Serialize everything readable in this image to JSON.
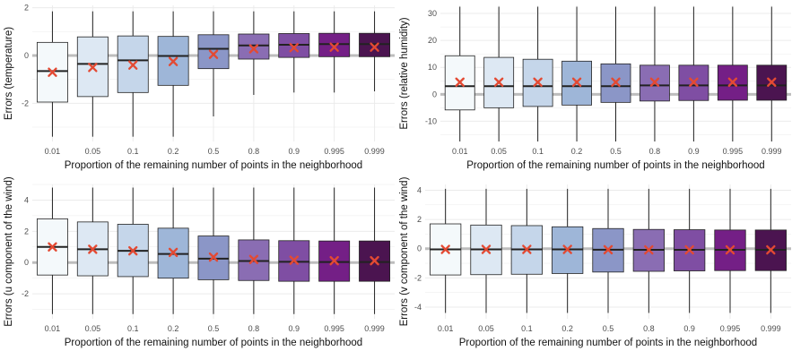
{
  "colors": {
    "boxes": [
      "#f4f9fb",
      "#dde8f3",
      "#c5d6ea",
      "#9eb6d8",
      "#8b96c7",
      "#8a6db3",
      "#7f4ea3",
      "#741f86",
      "#4b1450"
    ],
    "mean_marker": "#e34a33",
    "zero_line": "#bdbdbd",
    "grid": "#ebebeb",
    "text": "#4d4d4d"
  },
  "chart_data": [
    {
      "type": "box",
      "xlabel": "Proportion of the remaining number of points in the neighborhood",
      "ylabel": "Errors (temperature)",
      "categories": [
        "0.01",
        "0.05",
        "0.1",
        "0.2",
        "0.5",
        "0.8",
        "0.9",
        "0.995",
        "0.999"
      ],
      "ylim": [
        -3.6,
        2.1
      ],
      "yticks": [
        -2,
        0,
        2
      ],
      "zero_line": 0,
      "boxes": [
        {
          "whisker_low": -3.4,
          "q1": -1.95,
          "median": -0.65,
          "q3": 0.55,
          "whisker_high": 1.85,
          "mean": -0.7
        },
        {
          "whisker_low": -3.4,
          "q1": -1.72,
          "median": -0.35,
          "q3": 0.78,
          "whisker_high": 1.85,
          "mean": -0.5
        },
        {
          "whisker_low": -3.4,
          "q1": -1.55,
          "median": -0.2,
          "q3": 0.82,
          "whisker_high": 1.85,
          "mean": -0.4
        },
        {
          "whisker_low": -3.4,
          "q1": -1.25,
          "median": -0.02,
          "q3": 0.8,
          "whisker_high": 1.85,
          "mean": -0.25
        },
        {
          "whisker_low": -2.55,
          "q1": -0.55,
          "median": 0.28,
          "q3": 0.87,
          "whisker_high": 1.85,
          "mean": 0.05
        },
        {
          "whisker_low": -1.65,
          "q1": -0.15,
          "median": 0.42,
          "q3": 0.9,
          "whisker_high": 1.85,
          "mean": 0.28
        },
        {
          "whisker_low": -1.55,
          "q1": -0.08,
          "median": 0.45,
          "q3": 0.92,
          "whisker_high": 1.85,
          "mean": 0.33
        },
        {
          "whisker_low": -1.55,
          "q1": -0.05,
          "median": 0.48,
          "q3": 0.93,
          "whisker_high": 1.85,
          "mean": 0.35
        },
        {
          "whisker_low": -1.5,
          "q1": -0.05,
          "median": 0.48,
          "q3": 0.93,
          "whisker_high": 1.85,
          "mean": 0.35
        }
      ]
    },
    {
      "type": "box",
      "xlabel": "Proportion of the remaining number of points in the neighborhood",
      "ylabel": "Errors (relative humidity)",
      "categories": [
        "0.01",
        "0.05",
        "0.1",
        "0.2",
        "0.5",
        "0.8",
        "0.9",
        "0.995",
        "0.999"
      ],
      "ylim": [
        -17.5,
        33
      ],
      "yticks": [
        -10,
        0,
        10,
        20,
        30
      ],
      "zero_line": 0,
      "boxes": [
        {
          "whisker_low": -17.5,
          "q1": -5.8,
          "median": 3.0,
          "q3": 14.3,
          "whisker_high": 32.5,
          "mean": 4.5
        },
        {
          "whisker_low": -17.5,
          "q1": -5.0,
          "median": 3.0,
          "q3": 13.7,
          "whisker_high": 32.5,
          "mean": 4.5
        },
        {
          "whisker_low": -17.5,
          "q1": -4.5,
          "median": 3.0,
          "q3": 13.0,
          "whisker_high": 32.5,
          "mean": 4.5
        },
        {
          "whisker_low": -17.5,
          "q1": -4.0,
          "median": 3.0,
          "q3": 12.3,
          "whisker_high": 32.5,
          "mean": 4.5
        },
        {
          "whisker_low": -17.5,
          "q1": -3.0,
          "median": 3.0,
          "q3": 11.3,
          "whisker_high": 32.5,
          "mean": 4.5
        },
        {
          "whisker_low": -17.5,
          "q1": -2.5,
          "median": 3.3,
          "q3": 10.8,
          "whisker_high": 32.5,
          "mean": 4.5
        },
        {
          "whisker_low": -17.5,
          "q1": -2.3,
          "median": 3.3,
          "q3": 10.8,
          "whisker_high": 32.5,
          "mean": 4.5
        },
        {
          "whisker_low": -17.5,
          "q1": -2.2,
          "median": 3.3,
          "q3": 10.8,
          "whisker_high": 32.5,
          "mean": 4.5
        },
        {
          "whisker_low": -17.5,
          "q1": -2.2,
          "median": 3.3,
          "q3": 10.8,
          "whisker_high": 32.5,
          "mean": 4.5
        }
      ]
    },
    {
      "type": "box",
      "xlabel": "Proportion of the remaining number of points in the neighborhood",
      "ylabel": "Errors (u component of the wind)",
      "categories": [
        "0.01",
        "0.05",
        "0.1",
        "0.2",
        "0.5",
        "0.8",
        "0.9",
        "0.995",
        "0.999"
      ],
      "ylim": [
        -3.6,
        5.0
      ],
      "yticks": [
        -2,
        0,
        2,
        4
      ],
      "zero_line": 0,
      "boxes": [
        {
          "whisker_low": -3.3,
          "q1": -0.8,
          "median": 1.0,
          "q3": 2.8,
          "whisker_high": 4.8,
          "mean": 1.0
        },
        {
          "whisker_low": -3.3,
          "q1": -0.85,
          "median": 0.85,
          "q3": 2.6,
          "whisker_high": 4.8,
          "mean": 0.85
        },
        {
          "whisker_low": -3.3,
          "q1": -0.9,
          "median": 0.75,
          "q3": 2.45,
          "whisker_high": 4.8,
          "mean": 0.75
        },
        {
          "whisker_low": -3.3,
          "q1": -1.0,
          "median": 0.55,
          "q3": 2.2,
          "whisker_high": 4.8,
          "mean": 0.65
        },
        {
          "whisker_low": -3.3,
          "q1": -1.1,
          "median": 0.25,
          "q3": 1.7,
          "whisker_high": 4.8,
          "mean": 0.35
        },
        {
          "whisker_low": -3.3,
          "q1": -1.15,
          "median": 0.1,
          "q3": 1.45,
          "whisker_high": 4.8,
          "mean": 0.2
        },
        {
          "whisker_low": -3.3,
          "q1": -1.2,
          "median": 0.05,
          "q3": 1.4,
          "whisker_high": 4.8,
          "mean": 0.15
        },
        {
          "whisker_low": -3.3,
          "q1": -1.2,
          "median": 0.03,
          "q3": 1.38,
          "whisker_high": 4.8,
          "mean": 0.12
        },
        {
          "whisker_low": -3.3,
          "q1": -1.2,
          "median": 0.03,
          "q3": 1.38,
          "whisker_high": 4.8,
          "mean": 0.12
        }
      ]
    },
    {
      "type": "box",
      "xlabel": "Proportion of the remaining number of points in the neighborhood",
      "ylabel": "Errors (v component of the wind)",
      "categories": [
        "0.01",
        "0.05",
        "0.1",
        "0.2",
        "0.5",
        "0.8",
        "0.9",
        "0.995",
        "0.999"
      ],
      "ylim": [
        -4.8,
        4.4
      ],
      "yticks": [
        -4,
        -2,
        0,
        2,
        4
      ],
      "zero_line": 0,
      "boxes": [
        {
          "whisker_low": -4.4,
          "q1": -1.8,
          "median": -0.05,
          "q3": 1.7,
          "whisker_high": 4.1,
          "mean": -0.05
        },
        {
          "whisker_low": -4.4,
          "q1": -1.78,
          "median": -0.05,
          "q3": 1.62,
          "whisker_high": 4.1,
          "mean": -0.05
        },
        {
          "whisker_low": -4.4,
          "q1": -1.75,
          "median": -0.05,
          "q3": 1.58,
          "whisker_high": 4.1,
          "mean": -0.05
        },
        {
          "whisker_low": -4.4,
          "q1": -1.7,
          "median": -0.05,
          "q3": 1.5,
          "whisker_high": 4.1,
          "mean": -0.05
        },
        {
          "whisker_low": -4.4,
          "q1": -1.6,
          "median": -0.07,
          "q3": 1.38,
          "whisker_high": 4.1,
          "mean": -0.07
        },
        {
          "whisker_low": -4.4,
          "q1": -1.55,
          "median": -0.08,
          "q3": 1.32,
          "whisker_high": 4.1,
          "mean": -0.08
        },
        {
          "whisker_low": -4.4,
          "q1": -1.52,
          "median": -0.08,
          "q3": 1.3,
          "whisker_high": 4.1,
          "mean": -0.08
        },
        {
          "whisker_low": -4.4,
          "q1": -1.5,
          "median": -0.08,
          "q3": 1.28,
          "whisker_high": 4.1,
          "mean": -0.08
        },
        {
          "whisker_low": -4.4,
          "q1": -1.5,
          "median": -0.08,
          "q3": 1.28,
          "whisker_high": 4.1,
          "mean": -0.08
        }
      ]
    }
  ]
}
